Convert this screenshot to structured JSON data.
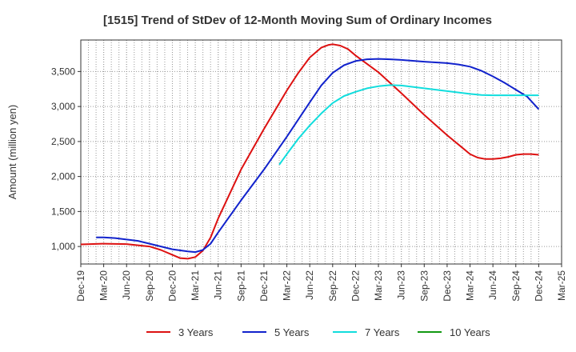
{
  "chart_data": {
    "type": "line",
    "title": "[1515]  Trend of StDev of 12-Month Moving Sum of Ordinary Incomes",
    "xlabel": "",
    "ylabel": "Amount (million yen)",
    "ylim": [
      750,
      3950
    ],
    "yticks": [
      1000,
      1500,
      2000,
      2500,
      3000,
      3500
    ],
    "ytick_labels": [
      "1,000",
      "1,500",
      "2,000",
      "2,500",
      "3,000",
      "3,500"
    ],
    "x_range": [
      0,
      21
    ],
    "categories": [
      "Dec-19",
      "Mar-20",
      "Jun-20",
      "Sep-20",
      "Dec-20",
      "Mar-21",
      "Jun-21",
      "Sep-21",
      "Dec-21",
      "Mar-22",
      "Jun-22",
      "Sep-22",
      "Dec-22",
      "Mar-23",
      "Jun-23",
      "Sep-23",
      "Dec-23",
      "Mar-24",
      "Jun-24",
      "Sep-24",
      "Dec-24",
      "Mar-25"
    ],
    "grid": true,
    "legend_position": "bottom",
    "series": [
      {
        "name": "3 Years",
        "color": "#dd1111",
        "x": [
          0,
          1,
          2,
          3,
          3.5,
          4,
          4.33,
          4.67,
          5,
          5.33,
          5.67,
          6,
          7,
          8,
          9,
          9.5,
          10,
          10.5,
          10.83,
          11,
          11.33,
          11.67,
          12,
          13,
          14,
          15,
          16,
          16.67,
          17,
          17.33,
          17.67,
          18,
          18.33,
          18.67,
          19,
          19.33,
          19.67,
          20
        ],
        "values": [
          1030,
          1040,
          1035,
          1000,
          950,
          880,
          835,
          825,
          850,
          940,
          1130,
          1400,
          2100,
          2680,
          3230,
          3480,
          3700,
          3840,
          3880,
          3890,
          3870,
          3820,
          3730,
          3490,
          3190,
          2880,
          2590,
          2410,
          2320,
          2270,
          2250,
          2250,
          2260,
          2280,
          2310,
          2320,
          2320,
          2310
        ]
      },
      {
        "name": "5 Years",
        "color": "#1122cc",
        "x": [
          0.67,
          1,
          1.5,
          2,
          2.5,
          3,
          4,
          4.67,
          5,
          5.33,
          5.67,
          6,
          7,
          8,
          9,
          10,
          10.5,
          11,
          11.5,
          12,
          12.5,
          13,
          13.5,
          14,
          15,
          16,
          16.5,
          17,
          17.5,
          18,
          18.5,
          19,
          19.5,
          20
        ],
        "values": [
          1130,
          1130,
          1120,
          1100,
          1080,
          1040,
          960,
          930,
          920,
          950,
          1040,
          1200,
          1660,
          2100,
          2570,
          3060,
          3300,
          3480,
          3590,
          3650,
          3675,
          3680,
          3675,
          3665,
          3640,
          3620,
          3600,
          3570,
          3510,
          3430,
          3340,
          3240,
          3140,
          2960
        ]
      },
      {
        "name": "7 Years",
        "color": "#11dddd",
        "x": [
          8.67,
          9,
          9.5,
          10,
          10.5,
          11,
          11.5,
          12,
          12.5,
          13,
          13.5,
          14,
          14.5,
          15,
          15.5,
          16,
          16.5,
          17,
          17.5,
          18,
          18.5,
          19,
          19.5,
          20
        ],
        "values": [
          2170,
          2320,
          2540,
          2730,
          2900,
          3050,
          3150,
          3210,
          3260,
          3290,
          3305,
          3300,
          3280,
          3260,
          3240,
          3220,
          3200,
          3180,
          3165,
          3160,
          3160,
          3160,
          3160,
          3160
        ]
      },
      {
        "name": "10 Years",
        "color": "#119911",
        "x": [],
        "values": []
      }
    ]
  }
}
